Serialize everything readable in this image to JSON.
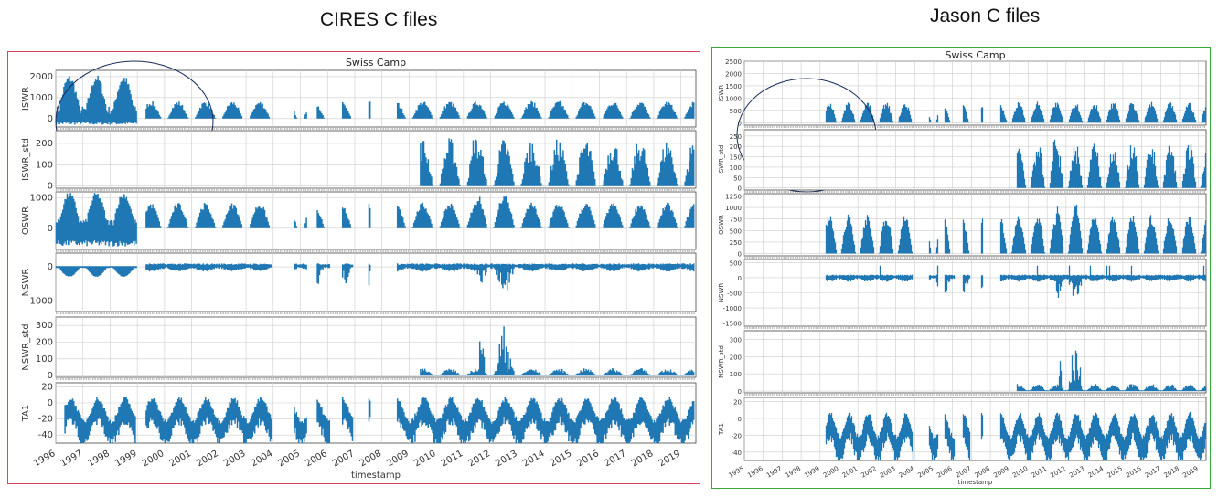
{
  "headings": {
    "left": "CIRES C files",
    "right": "Jason C files"
  },
  "colors": {
    "left_border": "#d9455f",
    "right_border": "#38a83a",
    "series": "#1f77b4",
    "circle": "#1a2c5e",
    "grid": "#cccccc"
  },
  "chart_data": [
    {
      "type": "area",
      "title": "Swiss Camp",
      "xlabel": "timestamp",
      "x_ticks": [
        "1996",
        "1997",
        "1998",
        "1999",
        "2000",
        "2001",
        "2002",
        "2003",
        "2004",
        "2005",
        "2006",
        "2007",
        "2008",
        "2009",
        "2010",
        "2011",
        "2012",
        "2013",
        "2014",
        "2015",
        "2016",
        "2017",
        "2018",
        "2019"
      ],
      "panels": [
        {
          "ylabel": "ISWR",
          "yticks": [
            0,
            1000,
            2000
          ],
          "ylim": [
            -400,
            2300
          ]
        },
        {
          "ylabel": "ISWR_std",
          "yticks": [
            0,
            100,
            200
          ],
          "ylim": [
            -10,
            260
          ]
        },
        {
          "ylabel": "OSWR",
          "yticks": [
            0,
            1000
          ],
          "ylim": [
            -700,
            1200
          ]
        },
        {
          "ylabel": "NSWR",
          "yticks": [
            0,
            -1000
          ],
          "ylim": [
            -1300,
            400
          ]
        },
        {
          "ylabel": "NSWR_std",
          "yticks": [
            0,
            100,
            200,
            300
          ],
          "ylim": [
            -10,
            350
          ]
        },
        {
          "ylabel": "TA1",
          "yticks": [
            20,
            0,
            -20,
            -40
          ],
          "ylim": [
            -50,
            25
          ]
        }
      ]
    },
    {
      "type": "area",
      "title": "Swiss Camp",
      "xlabel": "timestamp",
      "x_ticks": [
        "1995",
        "1996",
        "1997",
        "1998",
        "1999",
        "2000",
        "2001",
        "2002",
        "2003",
        "2004",
        "2005",
        "2006",
        "2007",
        "2008",
        "2009",
        "2010",
        "2011",
        "2012",
        "2013",
        "2014",
        "2015",
        "2016",
        "2017",
        "2018",
        "2019"
      ],
      "panels": [
        {
          "ylabel": "ISWR",
          "yticks": [
            0,
            500,
            1000,
            1500,
            2000,
            2500
          ],
          "ylim": [
            -100,
            2500
          ]
        },
        {
          "ylabel": "ISWR_std",
          "yticks": [
            0,
            50,
            100,
            150,
            200,
            250
          ],
          "ylim": [
            -10,
            280
          ]
        },
        {
          "ylabel": "OSWR",
          "yticks": [
            0,
            250,
            500,
            750,
            1000,
            1250
          ],
          "ylim": [
            -50,
            1300
          ]
        },
        {
          "ylabel": "NSWR",
          "yticks": [
            500,
            0,
            -500,
            -1000,
            -1500
          ],
          "ylim": [
            -1600,
            600
          ]
        },
        {
          "ylabel": "NSWR_std",
          "yticks": [
            0,
            100,
            200,
            300
          ],
          "ylim": [
            -10,
            350
          ]
        },
        {
          "ylabel": "TA1",
          "yticks": [
            20,
            0,
            -20,
            -40
          ],
          "ylim": [
            -50,
            25
          ]
        }
      ]
    }
  ]
}
